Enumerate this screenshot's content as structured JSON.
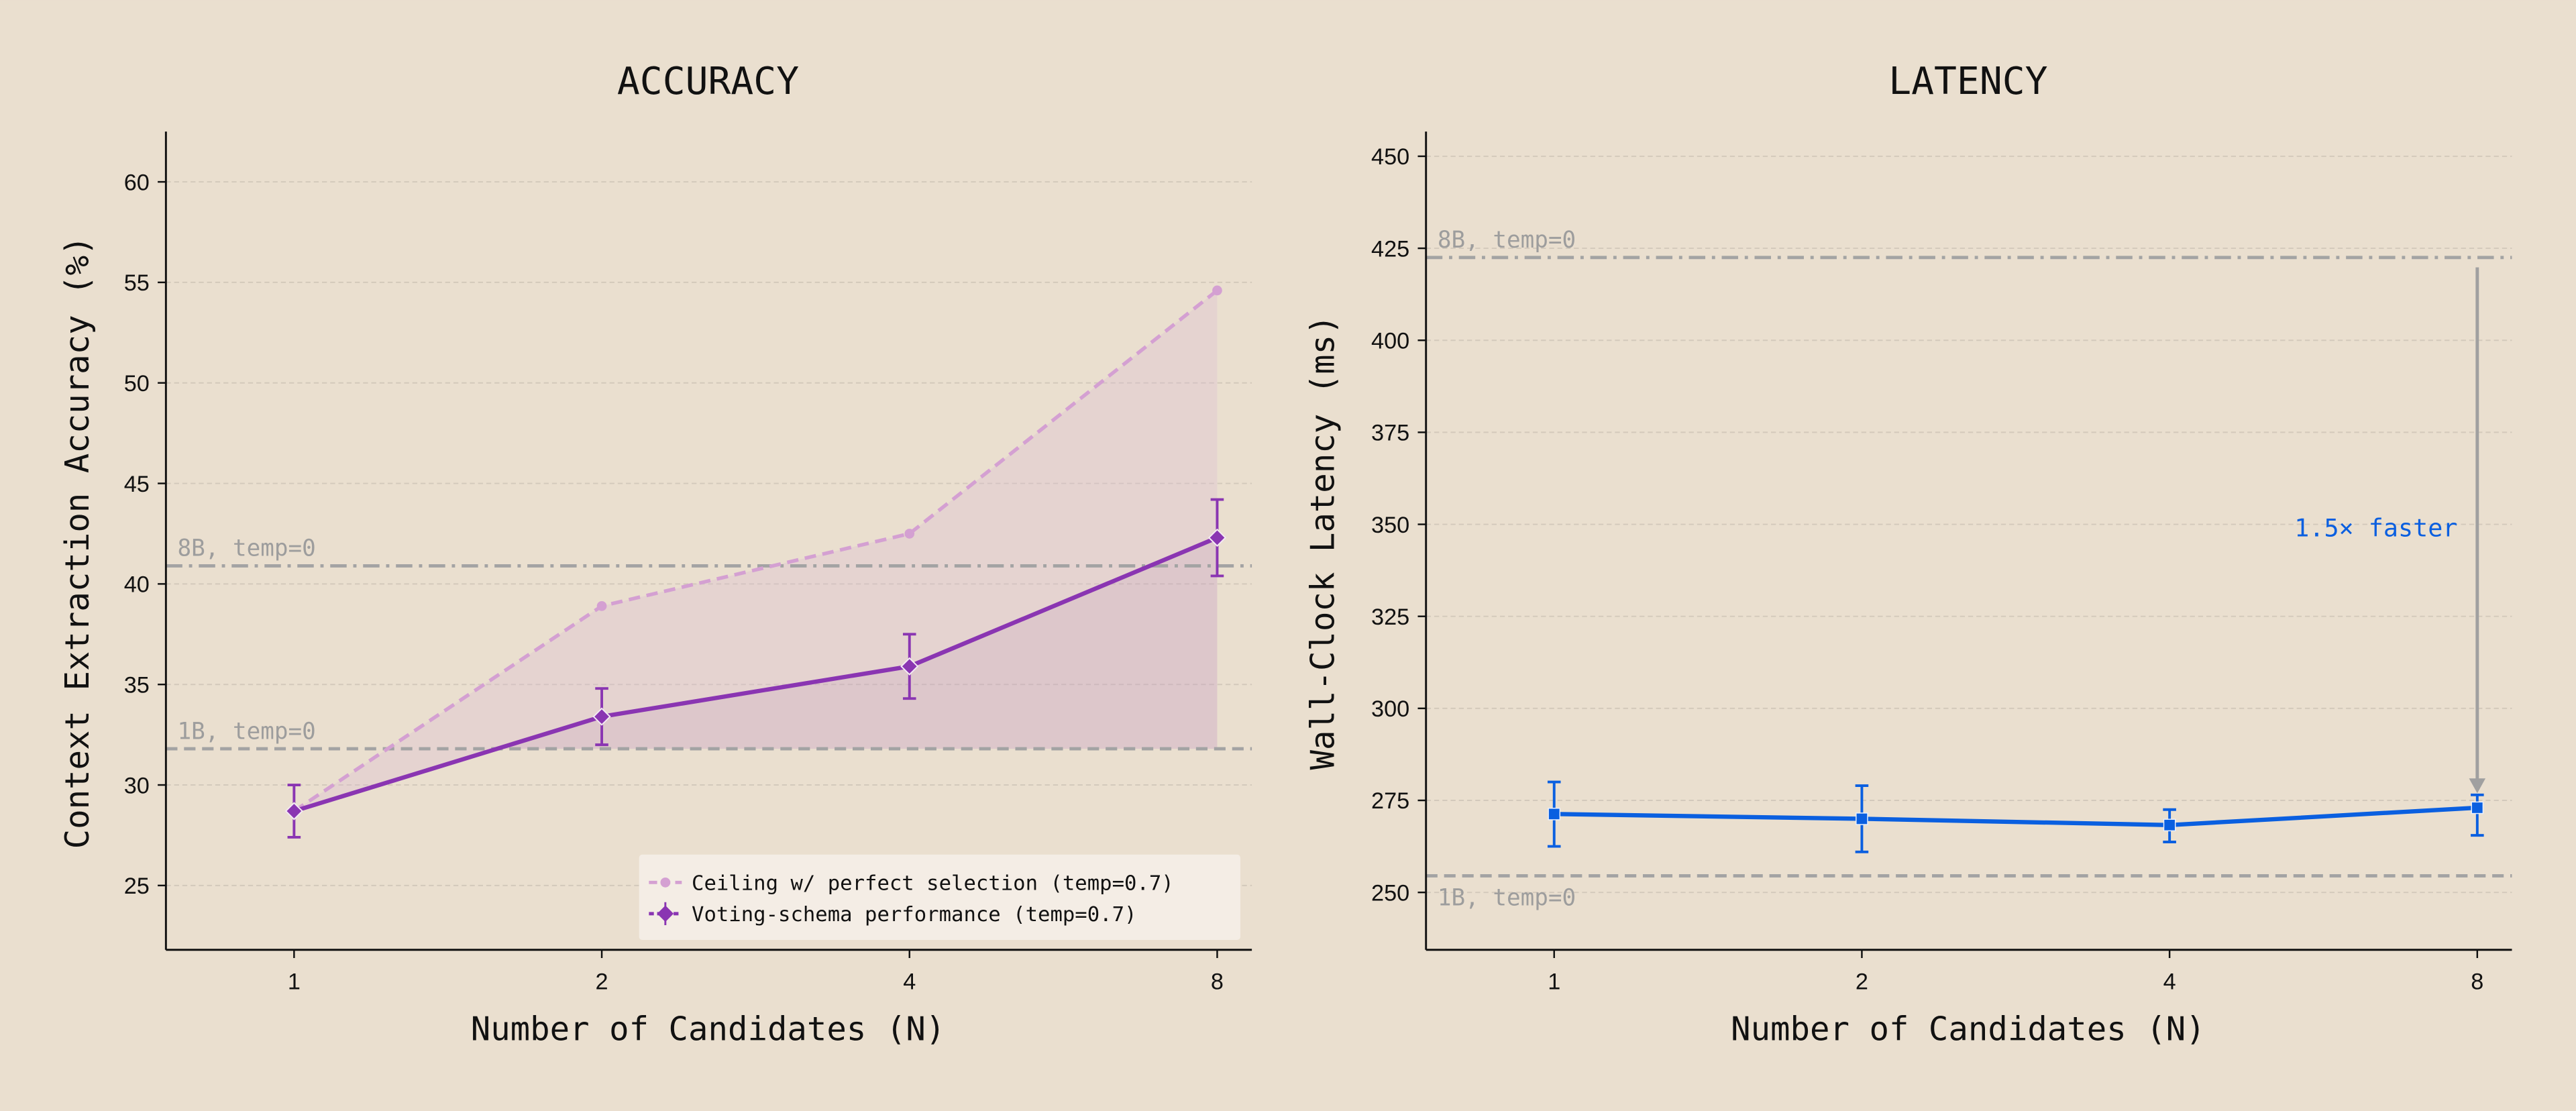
{
  "chart_data": [
    {
      "type": "line",
      "title": "ACCURACY",
      "xlabel": "Number of Candidates (N)",
      "ylabel": "Context Extraction Accuracy (%)",
      "categories": [
        "1",
        "2",
        "4",
        "8"
      ],
      "ylim": [
        21.8,
        62.5
      ],
      "yticks": [
        25,
        30,
        35,
        40,
        45,
        50,
        55,
        60
      ],
      "grid": true,
      "legend_position": "bottom-right",
      "series": [
        {
          "name": "Ceiling w/ perfect selection (temp=0.7)",
          "values": [
            28.7,
            38.9,
            42.5,
            54.6
          ],
          "color": "#D4A0D2",
          "style": "dashed",
          "marker": "circle"
        },
        {
          "name": "Voting-schema performance (temp=0.7)",
          "values": [
            28.7,
            33.4,
            35.9,
            42.3
          ],
          "err_low": [
            27.4,
            32.0,
            34.3,
            40.4
          ],
          "err_high": [
            30.0,
            34.8,
            37.5,
            44.2
          ],
          "color": "#8A35B2",
          "style": "solid",
          "marker": "diamond"
        }
      ],
      "reference_lines": [
        {
          "label": "8B, temp=0",
          "value": 40.9,
          "style": "dashdot"
        },
        {
          "label": "1B, temp=0",
          "value": 31.8,
          "style": "dashed"
        }
      ]
    },
    {
      "type": "line",
      "title": "LATENCY",
      "xlabel": "Number of Candidates (N)",
      "ylabel": "Wall-Clock Latency (ms)",
      "categories": [
        "1",
        "2",
        "4",
        "8"
      ],
      "ylim": [
        234.4,
        456.7
      ],
      "yticks": [
        250,
        275,
        300,
        325,
        350,
        375,
        400,
        425,
        450
      ],
      "grid": true,
      "series": [
        {
          "values": [
            271.3,
            270.0,
            268.3,
            273.0
          ],
          "err_low": [
            262.5,
            261.0,
            263.7,
            265.5
          ],
          "err_high": [
            280.0,
            279.0,
            272.5,
            276.5
          ],
          "color": "#0A5FE0",
          "style": "solid",
          "marker": "square"
        }
      ],
      "reference_lines": [
        {
          "label": "8B, temp=0",
          "value": 422.5,
          "style": "dashdot"
        },
        {
          "label": "1B, temp=0",
          "value": 254.5,
          "style": "dashed"
        }
      ],
      "annotation": {
        "text": "1.5× faster",
        "arrow_from": 422.5,
        "arrow_to": 276.5,
        "at_category": "8",
        "color": "#0A5FE0"
      }
    }
  ]
}
